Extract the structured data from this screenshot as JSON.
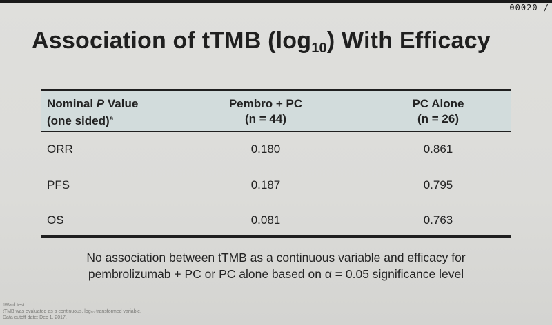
{
  "slide": {
    "number": "00020 /",
    "title": {
      "pre": "Association of tTMB (log",
      "sub": "10",
      "post": ") With Efficacy"
    }
  },
  "table": {
    "headers": [
      {
        "line1": "Nominal P Value",
        "line2": "(one sided)",
        "sup": "a"
      },
      {
        "line1": "Pembro + PC",
        "line2": "(n = 44)"
      },
      {
        "line1": "PC Alone",
        "line2": "(n = 26)"
      }
    ],
    "rows": [
      {
        "endpoint": "ORR",
        "pembro_pc": "0.180",
        "pc_alone": "0.861"
      },
      {
        "endpoint": "PFS",
        "pembro_pc": "0.187",
        "pc_alone": "0.795"
      },
      {
        "endpoint": "OS",
        "pembro_pc": "0.081",
        "pc_alone": "0.763"
      }
    ]
  },
  "note": {
    "line1": "No association between tTMB as a continuous variable and efficacy for",
    "line2": "pembrolizumab + PC or PC alone based on α = 0.05 significance level"
  },
  "footnotes": [
    "ᵃWald test.",
    "tTMB was evaluated as a continuous, log₁₀-transformed variable.",
    "Data cutoff date: Dec 1, 2017."
  ],
  "colors": {
    "header_band": "#d2dcdc",
    "rule": "#1f1f1f",
    "background": "#dcdcd9"
  }
}
